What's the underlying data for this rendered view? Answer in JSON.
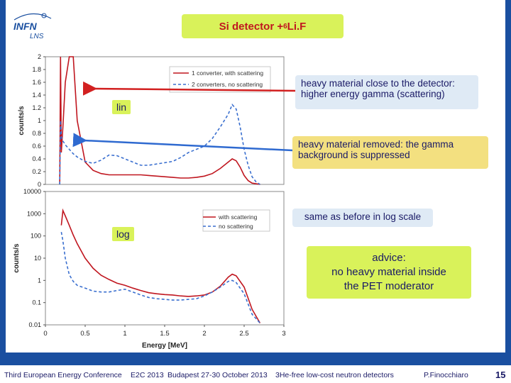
{
  "header": {
    "title_prefix": "Si detector + ",
    "title_sup": "6",
    "title_suffix": "Li.F",
    "logo_text_top": "INFN",
    "logo_text_bottom": "LNS"
  },
  "notes": {
    "scattering": "heavy material close to the detector: higher energy gamma (scattering)",
    "removed": "heavy material removed: the gamma background is suppressed",
    "log_same": "same as before in log scale",
    "advice_l1": "advice:",
    "advice_l2": "no heavy material inside",
    "advice_l3": "the PET moderator"
  },
  "tags": {
    "lin": "lin",
    "log": "log"
  },
  "footer": {
    "conf": "Third European Energy Conference",
    "e2c": "E2C 2013",
    "place": "Budapest 27-30 October 2013",
    "topic": "3He-free low-cost neutron detectors",
    "author": "P.Finocchiaro",
    "page": "15"
  },
  "colors": {
    "red": "#c0161f",
    "blue": "#3a6fcf",
    "accent": "#d9f25a",
    "frame": "#1a4fa0"
  },
  "chart_data": [
    {
      "type": "line",
      "ylabel": "counts/s",
      "xlim": [
        0,
        3
      ],
      "ylim": [
        0,
        2
      ],
      "yticks": [
        "0",
        "0.2",
        "0.4",
        "0.6",
        "0.8",
        "1",
        "1.2",
        "1.4",
        "1.6",
        "1.8",
        "2"
      ],
      "legend_position": "top-right",
      "series": [
        {
          "name": "1 converter, with scattering",
          "color": "#c0161f",
          "dash": false,
          "x": [
            0.18,
            0.19,
            0.2,
            0.22,
            0.25,
            0.3,
            0.35,
            0.4,
            0.5,
            0.6,
            0.7,
            0.8,
            0.9,
            1.0,
            1.1,
            1.2,
            1.3,
            1.4,
            1.5,
            1.6,
            1.7,
            1.8,
            1.9,
            2.0,
            2.1,
            2.2,
            2.3,
            2.35,
            2.4,
            2.45,
            2.5,
            2.55,
            2.6,
            2.65,
            2.7
          ],
          "y": [
            0.0,
            2.0,
            0.5,
            0.9,
            1.6,
            2.0,
            2.0,
            1.0,
            0.35,
            0.22,
            0.17,
            0.15,
            0.15,
            0.15,
            0.15,
            0.15,
            0.14,
            0.13,
            0.12,
            0.11,
            0.1,
            0.1,
            0.11,
            0.13,
            0.17,
            0.25,
            0.35,
            0.4,
            0.37,
            0.27,
            0.14,
            0.06,
            0.02,
            0.01,
            0.0
          ]
        },
        {
          "name": "2 converters, no scattering",
          "color": "#3a6fcf",
          "dash": true,
          "x": [
            0.18,
            0.19,
            0.2,
            0.22,
            0.25,
            0.3,
            0.35,
            0.4,
            0.5,
            0.6,
            0.7,
            0.8,
            0.9,
            1.0,
            1.1,
            1.2,
            1.3,
            1.4,
            1.5,
            1.6,
            1.7,
            1.8,
            1.9,
            2.0,
            2.1,
            2.2,
            2.3,
            2.35,
            2.4,
            2.45,
            2.5,
            2.55,
            2.6,
            2.65,
            2.7
          ],
          "y": [
            0.0,
            1.0,
            0.75,
            0.68,
            0.62,
            0.55,
            0.48,
            0.43,
            0.36,
            0.33,
            0.38,
            0.46,
            0.45,
            0.4,
            0.35,
            0.3,
            0.3,
            0.32,
            0.34,
            0.36,
            0.42,
            0.5,
            0.55,
            0.6,
            0.72,
            0.9,
            1.1,
            1.25,
            1.18,
            0.9,
            0.55,
            0.3,
            0.12,
            0.04,
            0.0
          ]
        }
      ]
    },
    {
      "type": "line",
      "ylabel": "counts/s",
      "xlabel": "Energy [MeV]",
      "xlim": [
        0,
        3
      ],
      "yscale": "log",
      "ylim": [
        0.01,
        10000
      ],
      "yticks": [
        "0.01",
        "0.1",
        "1",
        "10",
        "100",
        "1000",
        "10000"
      ],
      "xticks": [
        "0",
        "0.5",
        "1",
        "1.5",
        "2",
        "2.5",
        "3"
      ],
      "legend_position": "top-right",
      "series": [
        {
          "name": "with scattering",
          "color": "#c0161f",
          "dash": false,
          "x": [
            0.2,
            0.22,
            0.25,
            0.3,
            0.35,
            0.4,
            0.5,
            0.6,
            0.7,
            0.8,
            0.9,
            1.0,
            1.1,
            1.2,
            1.3,
            1.4,
            1.5,
            1.6,
            1.7,
            1.8,
            1.9,
            2.0,
            2.1,
            2.2,
            2.3,
            2.35,
            2.4,
            2.5,
            2.6,
            2.7
          ],
          "y": [
            300,
            1400,
            800,
            300,
            110,
            45,
            10,
            3.5,
            1.7,
            1.1,
            0.75,
            0.6,
            0.45,
            0.35,
            0.28,
            0.25,
            0.23,
            0.22,
            0.2,
            0.19,
            0.2,
            0.22,
            0.3,
            0.55,
            1.4,
            1.9,
            1.6,
            0.5,
            0.05,
            0.012
          ]
        },
        {
          "name": "no scattering",
          "color": "#3a6fcf",
          "dash": true,
          "x": [
            0.2,
            0.22,
            0.25,
            0.3,
            0.35,
            0.4,
            0.5,
            0.6,
            0.7,
            0.8,
            0.9,
            1.0,
            1.1,
            1.2,
            1.3,
            1.4,
            1.5,
            1.6,
            1.7,
            1.8,
            1.9,
            2.0,
            2.1,
            2.2,
            2.3,
            2.35,
            2.4,
            2.5,
            2.6,
            2.7
          ],
          "y": [
            150,
            60,
            10,
            1.8,
            0.9,
            0.6,
            0.45,
            0.33,
            0.3,
            0.3,
            0.35,
            0.4,
            0.3,
            0.22,
            0.17,
            0.15,
            0.14,
            0.13,
            0.13,
            0.14,
            0.15,
            0.2,
            0.3,
            0.5,
            0.9,
            1.0,
            0.8,
            0.25,
            0.03,
            0.012
          ]
        }
      ]
    }
  ]
}
